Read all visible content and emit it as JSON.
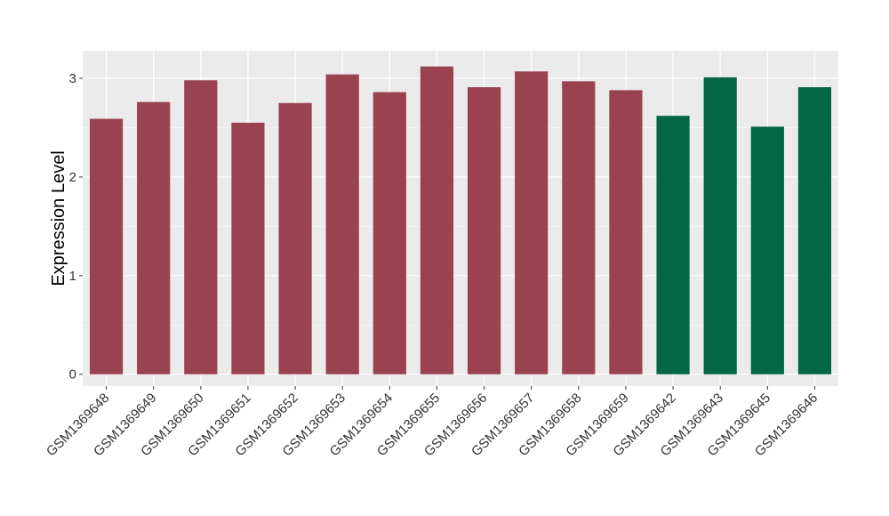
{
  "chart_data": {
    "type": "bar",
    "ylabel": "Expression Level",
    "xlabel": "",
    "ylim": [
      -0.12,
      3.28
    ],
    "yticks": [
      0,
      1,
      2,
      3
    ],
    "grid": true,
    "panel_background": "#EBEBEB",
    "categories": [
      "GSM1369648",
      "GSM1369649",
      "GSM1369650",
      "GSM1369651",
      "GSM1369652",
      "GSM1369653",
      "GSM1369654",
      "GSM1369655",
      "GSM1369656",
      "GSM1369657",
      "GSM1369658",
      "GSM1369659",
      "GSM1369642",
      "GSM1369643",
      "GSM1369645",
      "GSM1369646"
    ],
    "values": [
      2.59,
      2.76,
      2.98,
      2.55,
      2.75,
      3.04,
      2.86,
      3.12,
      2.91,
      3.07,
      2.97,
      2.88,
      2.62,
      3.01,
      2.51,
      2.91
    ],
    "colors": [
      "#9B4250",
      "#9B4250",
      "#9B4250",
      "#9B4250",
      "#9B4250",
      "#9B4250",
      "#9B4250",
      "#9B4250",
      "#9B4250",
      "#9B4250",
      "#9B4250",
      "#9B4250",
      "#036645",
      "#036645",
      "#036645",
      "#036645"
    ]
  }
}
